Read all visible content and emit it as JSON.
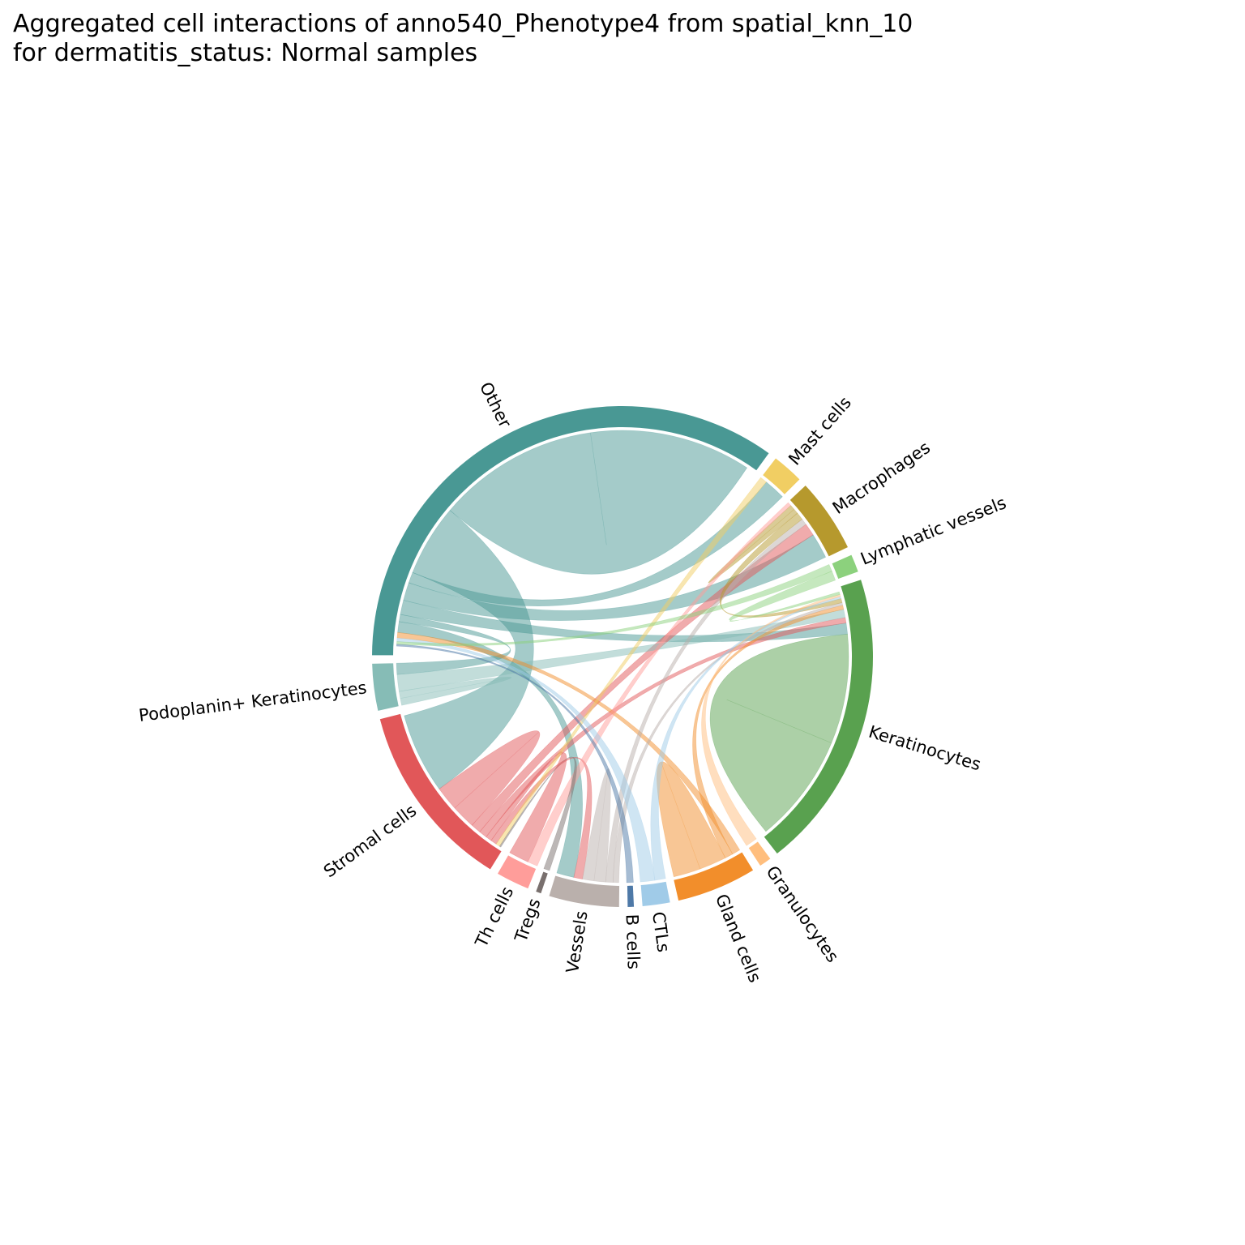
{
  "title": {
    "line1": "Aggregated cell interactions of anno540_Phenotype4 from spatial_knn_10",
    "line2": "for dermatitis_status: Normal samples"
  },
  "chart_data": {
    "type": "chord",
    "title": "Aggregated cell interactions of anno540_Phenotype4 from spatial_knn_10 for dermatitis_status: Normal samples",
    "segments": [
      {
        "name": "B cells",
        "color": "#4e79a7",
        "size": 0.8
      },
      {
        "name": "CTLs",
        "color": "#a0cbe8",
        "size": 3.0
      },
      {
        "name": "Gland cells",
        "color": "#f28e2b",
        "size": 8.4
      },
      {
        "name": "Granulocytes",
        "color": "#ffbe7d",
        "size": 1.4
      },
      {
        "name": "Keratinocytes",
        "color": "#59a14f",
        "size": 31.2
      },
      {
        "name": "Lymphatic vessels",
        "color": "#8cd17d",
        "size": 2.0
      },
      {
        "name": "Macrophages",
        "color": "#b6992d",
        "size": 7.8
      },
      {
        "name": "Mast cells",
        "color": "#f1ce63",
        "size": 3.4
      },
      {
        "name": "Other",
        "color": "#499894",
        "size": 56.0
      },
      {
        "name": "Podoplanin+ Keratinocytes",
        "color": "#86bcb6",
        "size": 5.0
      },
      {
        "name": "Stromal cells",
        "color": "#e15759",
        "size": 19.6
      },
      {
        "name": "Th cells",
        "color": "#ff9d9a",
        "size": 3.6
      },
      {
        "name": "Tregs",
        "color": "#79706e",
        "size": 0.7
      },
      {
        "name": "Vessels",
        "color": "#bab0ac",
        "size": 7.4
      }
    ],
    "links": [
      {
        "source": "Keratinocytes",
        "target": "Keratinocytes",
        "value": 16.0
      },
      {
        "source": "Other",
        "target": "Other",
        "value": 18.0
      },
      {
        "source": "Other",
        "target": "Stromal cells",
        "value": 8.0
      },
      {
        "source": "Other",
        "target": "Mast cells",
        "value": 1.2
      },
      {
        "source": "Other",
        "target": "Macrophages",
        "value": 2.0
      },
      {
        "source": "Other",
        "target": "Keratinocytes",
        "value": 1.6
      },
      {
        "source": "Other",
        "target": "Podoplanin+ Keratinocytes",
        "value": 0.8
      },
      {
        "source": "Other",
        "target": "Vessels",
        "value": 1.2
      },
      {
        "source": "Stromal cells",
        "target": "Stromal cells",
        "value": 2.4
      },
      {
        "source": "Stromal cells",
        "target": "Macrophages",
        "value": 1.0
      },
      {
        "source": "Stromal cells",
        "target": "Keratinocytes",
        "value": 0.8
      },
      {
        "source": "Stromal cells",
        "target": "Th cells",
        "value": 0.6
      },
      {
        "source": "Stromal cells",
        "target": "Vessels",
        "value": 0.6
      },
      {
        "source": "Podoplanin+ Keratinocytes",
        "target": "Keratinocytes",
        "value": 1.2
      },
      {
        "source": "Podoplanin+ Keratinocytes",
        "target": "Podoplanin+ Keratinocytes",
        "value": 0.5
      },
      {
        "source": "Gland cells",
        "target": "Gland cells",
        "value": 2.0
      },
      {
        "source": "Gland cells",
        "target": "Keratinocytes",
        "value": 0.6
      },
      {
        "source": "Gland cells",
        "target": "Other",
        "value": 0.6
      },
      {
        "source": "Vessels",
        "target": "Vessels",
        "value": 0.8
      },
      {
        "source": "Vessels",
        "target": "Macrophages",
        "value": 0.5
      },
      {
        "source": "Vessels",
        "target": "Keratinocytes",
        "value": 0.4
      },
      {
        "source": "Macrophages",
        "target": "Keratinocytes",
        "value": 0.6
      },
      {
        "source": "Macrophages",
        "target": "Macrophages",
        "value": 0.4
      },
      {
        "source": "Mast cells",
        "target": "Stromal cells",
        "value": 0.4
      },
      {
        "source": "Th cells",
        "target": "Macrophages",
        "value": 0.3
      },
      {
        "source": "CTLs",
        "target": "Other",
        "value": 0.4
      },
      {
        "source": "CTLs",
        "target": "Keratinocytes",
        "value": 0.3
      },
      {
        "source": "Granulocytes",
        "target": "Keratinocytes",
        "value": 0.3
      },
      {
        "source": "Lymphatic vessels",
        "target": "Keratinocytes",
        "value": 0.4
      },
      {
        "source": "Lymphatic vessels",
        "target": "Other",
        "value": 0.3
      },
      {
        "source": "B cells",
        "target": "Other",
        "value": 0.2
      },
      {
        "source": "Tregs",
        "target": "Stromal cells",
        "value": 0.15
      }
    ]
  }
}
